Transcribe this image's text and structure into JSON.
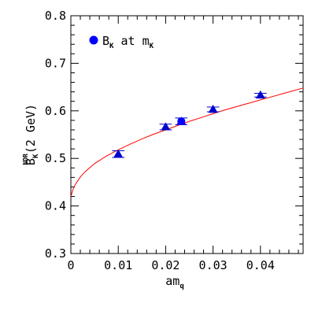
{
  "chart_data": {
    "type": "scatter",
    "xlabel": {
      "main": "am",
      "sub": "q"
    },
    "ylabel": {
      "main": "B",
      "sub": "K",
      "sup": "NDR",
      "rest": "(2 GeV)"
    },
    "xlim": [
      0,
      0.049
    ],
    "ylim": [
      0.3,
      0.8
    ],
    "x_ticks": [
      0,
      0.01,
      0.02,
      0.03,
      0.04
    ],
    "x_tick_labels": [
      "0",
      "0.01",
      "0.02",
      "0.03",
      "0.04"
    ],
    "y_ticks": [
      0.3,
      0.4,
      0.5,
      0.6,
      0.7,
      0.8
    ],
    "y_tick_labels": [
      "0.3",
      "0.4",
      "0.5",
      "0.6",
      "0.7",
      "0.8"
    ],
    "grid": false,
    "legend": {
      "position": "top-left",
      "entries": [
        {
          "marker": "circle",
          "color": "#0000ff",
          "label_main": "B",
          "label_sub": "K",
          "label_mid": " at m",
          "label_sub2": "K"
        }
      ]
    },
    "series": [
      {
        "marker": "triangle",
        "color": "#0000cc",
        "points": [
          {
            "x": 0.01,
            "y": 0.509,
            "xerr": 0.0013,
            "yerr": 0.007
          },
          {
            "x": 0.02,
            "y": 0.566,
            "xerr": 0.0013,
            "yerr": 0.006
          },
          {
            "x": 0.0233,
            "y": 0.578,
            "xerr": 0.0013,
            "yerr": 0.007
          },
          {
            "x": 0.03,
            "y": 0.603,
            "xerr": 0.0013,
            "yerr": 0.005
          },
          {
            "x": 0.04,
            "y": 0.633,
            "xerr": 0.0013,
            "yerr": 0.004
          }
        ]
      },
      {
        "marker": "circle",
        "color": "#0000ff",
        "points": [
          {
            "x": 0.0233,
            "y": 0.578
          }
        ]
      }
    ],
    "fit_curve": {
      "color": "#ff0000",
      "x": [
        0,
        0.0005,
        0.001,
        0.002,
        0.003,
        0.005,
        0.0075,
        0.01,
        0.0125,
        0.015,
        0.0175,
        0.02,
        0.0225,
        0.025,
        0.0275,
        0.03,
        0.0325,
        0.035,
        0.0375,
        0.04,
        0.0425,
        0.045,
        0.049
      ],
      "y": [
        0.42,
        0.436,
        0.446,
        0.461,
        0.472,
        0.489,
        0.505,
        0.518,
        0.53,
        0.541,
        0.551,
        0.56,
        0.569,
        0.578,
        0.586,
        0.594,
        0.602,
        0.609,
        0.616,
        0.623,
        0.63,
        0.637,
        0.648
      ]
    }
  }
}
